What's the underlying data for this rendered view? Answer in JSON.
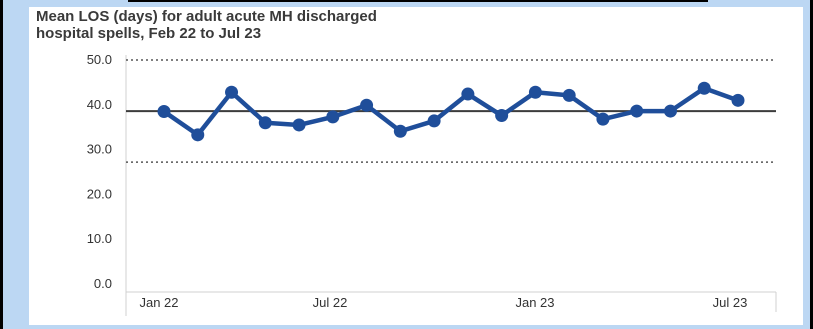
{
  "chart_data": {
    "type": "line",
    "title_line1": "Mean LOS (days) for adult acute MH discharged",
    "title_line2": "hospital spells, Feb 22 to Jul 23",
    "xlabel": "",
    "ylabel": "",
    "ylim": [
      0,
      50
    ],
    "yticks": [
      "0.0",
      "10.0",
      "20.0",
      "30.0",
      "40.0",
      "50.0"
    ],
    "xtick_labels": [
      "Jan 22",
      "Jul 22",
      "Jan 23",
      "Jul 23"
    ],
    "x": [
      "Feb 22",
      "Mar 22",
      "Apr 22",
      "May 22",
      "Jun 22",
      "Jul 22",
      "Aug 22",
      "Sep 22",
      "Oct 22",
      "Nov 22",
      "Dec 22",
      "Jan 23",
      "Feb 23",
      "Mar 23",
      "Apr 23",
      "May 23",
      "Jun 23",
      "Jul 23"
    ],
    "series": [
      {
        "values": [
          38.5,
          33.3,
          42.8,
          36.0,
          35.5,
          37.3,
          39.9,
          34.1,
          36.4,
          42.4,
          37.6,
          42.8,
          42.1,
          36.8,
          38.6,
          38.6,
          43.7,
          41.0
        ]
      }
    ],
    "mean_line": 38.6,
    "upper_limit": 50.0,
    "lower_limit": 27.2,
    "grid": false,
    "colors": {
      "series": "#1f4e9a",
      "mean": "#3c3c3c",
      "limits": "#555555",
      "frame": "#bcd7f3"
    }
  }
}
